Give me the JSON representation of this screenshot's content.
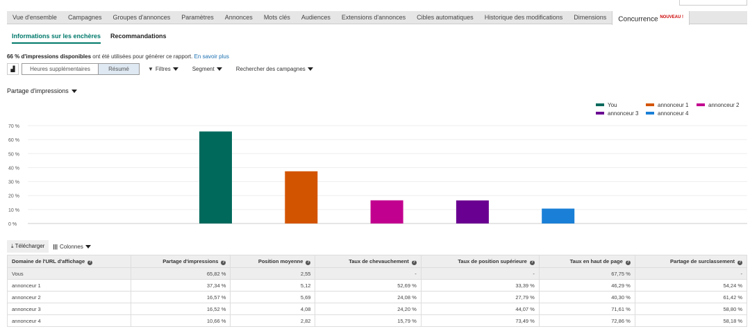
{
  "tabs": [
    "Vue d'ensemble",
    "Campagnes",
    "Groupes d'annonces",
    "Paramètres",
    "Annonces",
    "Mots clés",
    "Audiences",
    "Extensions d'annonces",
    "Cibles automatiques",
    "Historique des modifications",
    "Dimensions"
  ],
  "active_tab": {
    "label": "Concurrence",
    "badge": "NOUVEAU !"
  },
  "subtabs": [
    "Informations sur les enchères",
    "Recommandations"
  ],
  "info": {
    "bold": "66 % d'impressions disponibles",
    "text": " ont été utilisées pour générer ce rapport.",
    "link": "En savoir plus"
  },
  "toolbar": {
    "seg1": "Heures supplémentaires",
    "seg2": "Résumé",
    "filters": "Filtres",
    "segment": "Segment",
    "search": "Rechercher des campagnes"
  },
  "metric": "Partage d'impressions",
  "chart_data": {
    "type": "bar",
    "categories": [
      "You",
      "annonceur 1",
      "annonceur 2",
      "annonceur 3",
      "annonceur 4"
    ],
    "values": [
      65.82,
      37.34,
      16.57,
      16.52,
      10.66
    ],
    "colors": [
      "#00695c",
      "#d35400",
      "#c2008f",
      "#6a0091",
      "#1a7fd6"
    ],
    "yticks": [
      "0 %",
      "10 %",
      "20 %",
      "30 %",
      "40 %",
      "50 %",
      "60 %",
      "70 %"
    ],
    "ylim": [
      0,
      70
    ],
    "legend": "top-right"
  },
  "download": "Télécharger",
  "columns": "Colonnes",
  "table": {
    "headers": [
      "Domaine de l'URL d'affichage",
      "Partage d'impressions",
      "Position moyenne",
      "Taux de chevauchement",
      "Taux de position supérieure",
      "Taux en haut de page",
      "Partage de surclassement"
    ],
    "rows": [
      [
        "Vous",
        "65,82 %",
        "2,55",
        "-",
        "-",
        "67,75 %",
        "-"
      ],
      [
        "annonceur 1",
        "37,34 %",
        "5,12",
        "52,69 %",
        "33,39 %",
        "46,29 %",
        "54,24 %"
      ],
      [
        "annonceur 2",
        "16,57 %",
        "5,69",
        "24,08 %",
        "27,79 %",
        "40,30 %",
        "61,42 %"
      ],
      [
        "annonceur 3",
        "16,52 %",
        "4,08",
        "24,20 %",
        "44,07 %",
        "71,61 %",
        "58,80 %"
      ],
      [
        "annonceur 4",
        "10,66 %",
        "2,82",
        "15,79 %",
        "73,49 %",
        "72,86 %",
        "58,18 %"
      ]
    ]
  }
}
